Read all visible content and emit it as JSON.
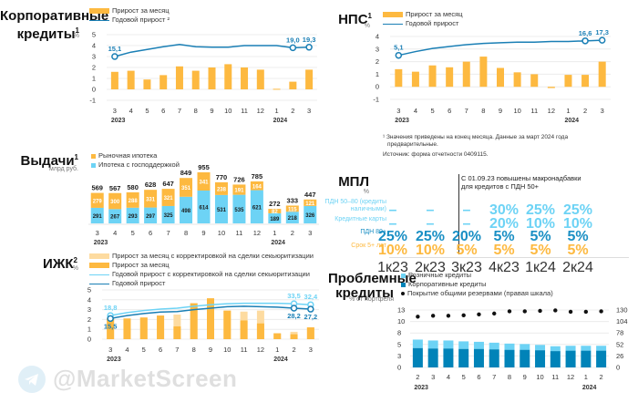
{
  "panels": {
    "corp": {
      "title_line1": "Корпоративные",
      "title_line2": "кредиты",
      "title_sup": "1",
      "unit": "%",
      "legend": [
        "Прирост за месяц",
        "Годовой прирост ²"
      ]
    },
    "nps": {
      "title": "НПС",
      "title_sup": "1",
      "unit": "%",
      "legend": [
        "Прирост за месяц",
        "Годовой прирост"
      ]
    },
    "issues": {
      "title": "Выдачи",
      "title_sup": "1",
      "unit": "млрд руб.",
      "legend": [
        "Рыночная ипотека",
        "Ипотека с господдержкой"
      ]
    },
    "izhk": {
      "title": "ИЖК",
      "title_sup": "2",
      "unit": "%",
      "legend": [
        "Прирост за месяц с корректировкой на сделки секьюритизации",
        "Прирост за месяц",
        "Годовой прирост с корректировкой на сделки секьюритизации",
        "Годовой прирост"
      ]
    },
    "problem": {
      "title_line1": "Проблемные",
      "title_line2": "кредиты",
      "unit": "% от портфеля",
      "legend": [
        "Розничные кредиты",
        "Корпоративные кредиты",
        "Покрытие общими резервами (правая шкала)"
      ]
    },
    "mpl": {
      "title": "МПЛ",
      "unit": "%",
      "note": "С 01.09.23 повышены макронадбавки для кредитов с ПДН 50+",
      "columns": [
        "1к23",
        "2к23",
        "3к23",
        "4к23",
        "1к24",
        "2к24"
      ],
      "rows": [
        {
          "label": "ПДН 50–80 (кредиты наличными)",
          "values": [
            "–",
            "–",
            "–",
            "30%",
            "25%",
            "25%"
          ]
        },
        {
          "label": "Кредитные карты",
          "values": [
            "–",
            "–",
            "–",
            "20%",
            "10%",
            "10%"
          ]
        },
        {
          "label": "ПДН 80+",
          "values": [
            "25%",
            "25%",
            "20%",
            "5%",
            "5%",
            "5%"
          ]
        },
        {
          "label": "Срок 5+ лет",
          "values": [
            "10%",
            "10%",
            "5%",
            "5%",
            "5%",
            "5%"
          ]
        }
      ]
    }
  },
  "footnote": {
    "line1": "¹ Значения приведены на конец месяца. Данные за март 2024 года",
    "line2": "предварительные.",
    "source": "Источник: форма отчетности 0409115."
  },
  "watermark": "@MarketScreen",
  "colors": {
    "orange": "#FDB940",
    "light_orange": "#FDDBA0",
    "blue": "#1A7FB5",
    "light_blue": "#6DD3F5",
    "dark_blue": "#0083B8",
    "mpl_light": "#6DD3F5",
    "mpl_mid": "#1A8FC4",
    "mpl_orange": "#FDB940"
  },
  "chart_data": [
    {
      "id": "corp",
      "type": "bar+line",
      "title": "Корпоративные кредиты",
      "x": [
        "3",
        "4",
        "5",
        "6",
        "7",
        "8",
        "9",
        "10",
        "11",
        "12",
        "1",
        "2",
        "3"
      ],
      "year_labels": {
        "0": "2023",
        "10": "2024"
      },
      "ylim": [
        -1,
        5
      ],
      "yticks": [
        -1,
        0,
        1,
        2,
        3,
        4,
        5
      ],
      "series": [
        {
          "name": "Прирост за месяц",
          "kind": "bar",
          "values": [
            1.6,
            1.7,
            0.9,
            1.3,
            2.1,
            1.7,
            2.0,
            2.3,
            2.0,
            1.8,
            0.05,
            0.7,
            1.8
          ]
        },
        {
          "name": "Годовой прирост",
          "kind": "line",
          "values": [
            3.0,
            3.4,
            3.65,
            3.9,
            4.1,
            3.9,
            3.85,
            3.85,
            4.0,
            4.0,
            4.0,
            3.8,
            3.85
          ],
          "labels": {
            "0": "15,1",
            "11": "19,0",
            "12": "19,3"
          }
        }
      ]
    },
    {
      "id": "nps",
      "type": "bar+line",
      "title": "НПС",
      "x": [
        "3",
        "4",
        "5",
        "6",
        "7",
        "8",
        "9",
        "10",
        "11",
        "12",
        "1",
        "2",
        "3"
      ],
      "year_labels": {
        "0": "2023",
        "10": "2024"
      },
      "ylim": [
        -1,
        4
      ],
      "yticks": [
        -1,
        0,
        1,
        2,
        3,
        4
      ],
      "series": [
        {
          "name": "Прирост за месяц",
          "kind": "bar",
          "values": [
            1.4,
            1.2,
            1.7,
            1.55,
            2.0,
            2.4,
            1.5,
            1.15,
            1.0,
            -0.1,
            0.95,
            0.95,
            2.0
          ]
        },
        {
          "name": "Годовой прирост",
          "kind": "line",
          "values": [
            2.5,
            2.8,
            3.05,
            3.2,
            3.35,
            3.45,
            3.5,
            3.55,
            3.55,
            3.6,
            3.6,
            3.65,
            3.7
          ],
          "labels": {
            "0": "5,1",
            "11": "16,6",
            "12": "17,3"
          }
        }
      ]
    },
    {
      "id": "issues",
      "type": "stacked-bar",
      "title": "Выдачи",
      "x": [
        "3",
        "4",
        "5",
        "6",
        "7",
        "8",
        "9",
        "10",
        "11",
        "12",
        "1",
        "2",
        "3"
      ],
      "year_labels": {
        "0": "2023",
        "10": "2024"
      },
      "totals": [
        569,
        567,
        580,
        628,
        647,
        849,
        955,
        770,
        726,
        785,
        272,
        333,
        447
      ],
      "series": [
        {
          "name": "Ипотека с господдержкой",
          "values": [
            291,
            267,
            293,
            297,
            325,
            498,
            614,
            531,
            535,
            621,
            189,
            218,
            326
          ]
        },
        {
          "name": "Рыночная ипотека",
          "values": [
            279,
            300,
            288,
            331,
            321,
            351,
            341,
            238,
            191,
            164,
            82,
            115,
            121
          ]
        }
      ]
    },
    {
      "id": "izhk",
      "type": "bar+line",
      "title": "ИЖК",
      "x": [
        "3",
        "4",
        "5",
        "6",
        "7",
        "8",
        "9",
        "10",
        "11",
        "12",
        "1",
        "2",
        "3"
      ],
      "year_labels": {
        "0": "2023",
        "10": "2024"
      },
      "ylim": [
        0,
        5
      ],
      "yticks": [
        0,
        1,
        2,
        3,
        4,
        5
      ],
      "series": [
        {
          "name": "Прирост за месяц с корректировкой на сделки секьюритизации",
          "kind": "bar",
          "values": [
            2.1,
            2.1,
            2.2,
            2.4,
            2.5,
            3.65,
            4.15,
            2.9,
            2.8,
            2.9,
            0.6,
            0.75,
            1.2
          ]
        },
        {
          "name": "Прирост за месяц",
          "kind": "bar",
          "values": [
            2.1,
            2.1,
            2.2,
            2.4,
            1.3,
            3.65,
            4.15,
            2.9,
            1.9,
            1.6,
            0.6,
            0.5,
            1.2
          ]
        },
        {
          "name": "Годовой прирост с корректировкой на сделки секьюритизации",
          "kind": "line",
          "values": [
            2.4,
            2.7,
            2.9,
            3.05,
            3.15,
            3.35,
            3.5,
            3.6,
            3.65,
            3.65,
            3.65,
            3.6,
            3.5
          ],
          "labels": {
            "0": "18,8",
            "11": "33,5",
            "12": "32,4"
          }
        },
        {
          "name": "Годовой прирост",
          "kind": "line",
          "values": [
            2.1,
            2.4,
            2.6,
            2.75,
            2.8,
            3.0,
            3.15,
            3.3,
            3.35,
            3.3,
            3.25,
            3.15,
            3.05
          ],
          "labels": {
            "0": "15,5",
            "11": "28,2",
            "12": "27,2"
          }
        }
      ]
    },
    {
      "id": "problem",
      "type": "stacked-bar+scatter",
      "title": "Проблемные кредиты",
      "x": [
        "2",
        "3",
        "4",
        "5",
        "6",
        "7",
        "8",
        "9",
        "10",
        "11",
        "12",
        "1",
        "2"
      ],
      "year_labels": {
        "0": "2023",
        "11": "2024"
      },
      "ylim": [
        0,
        13
      ],
      "yticks": [
        0,
        3,
        5,
        8,
        10,
        13
      ],
      "y2lim": [
        0,
        130
      ],
      "y2ticks": [
        0,
        26,
        52,
        78,
        104,
        130
      ],
      "series": [
        {
          "name": "Корпоративные кредиты",
          "kind": "bar",
          "values": [
            4.4,
            4.3,
            4.3,
            4.2,
            4.2,
            4.1,
            4.0,
            4.0,
            3.9,
            3.7,
            3.8,
            3.8,
            3.8
          ]
        },
        {
          "name": "Розничные кредиты",
          "kind": "bar",
          "values": [
            1.9,
            1.8,
            1.8,
            1.7,
            1.6,
            1.5,
            1.4,
            1.3,
            1.2,
            1.1,
            1.1,
            1.1,
            1.1
          ]
        },
        {
          "name": "Покрытие общими резервами (правая шкала)",
          "kind": "scatter",
          "axis": "right",
          "values": [
            115,
            117,
            117,
            118,
            120,
            122,
            127,
            127,
            128,
            129,
            126,
            126,
            127
          ]
        }
      ]
    }
  ]
}
